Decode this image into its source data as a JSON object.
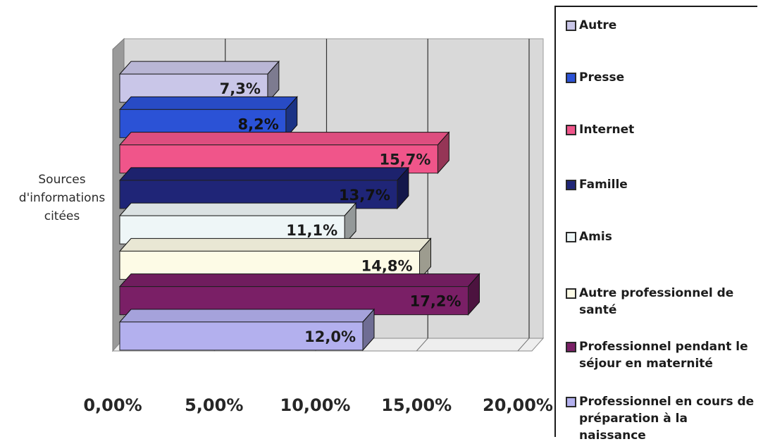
{
  "chart_data": {
    "type": "bar",
    "orientation": "horizontal",
    "style": "3d",
    "category_label": "Sources d'informations citées",
    "xlim": [
      0,
      20
    ],
    "x_ticks": [
      "0,00%",
      "5,00%",
      "10,00%",
      "15,00%",
      "20,00%"
    ],
    "grid": true,
    "legend_position": "right",
    "series": [
      {
        "name": "Autre",
        "value": 7.3,
        "label": "7,3%",
        "color": "#c9c6e8"
      },
      {
        "name": "Presse",
        "value": 8.2,
        "label": "8,2%",
        "color": "#2b52d6"
      },
      {
        "name": "Internet",
        "value": 15.7,
        "label": "15,7%",
        "color": "#f0558a"
      },
      {
        "name": "Famille",
        "value": 13.7,
        "label": "13,7%",
        "color": "#1f2577"
      },
      {
        "name": "Amis",
        "value": 11.1,
        "label": "11,1%",
        "color": "#eef6f7"
      },
      {
        "name": "Autre professionnel de santé",
        "value": 14.8,
        "label": "14,8%",
        "color": "#fdfbe6"
      },
      {
        "name": "Professionnel pendant le séjour en maternité",
        "value": 17.2,
        "label": "17,2%",
        "color": "#7a1f66"
      },
      {
        "name": "Professionnel en cours de préparation à la naissance",
        "value": 12.0,
        "label": "12,0%",
        "color": "#b3b0ee"
      }
    ]
  }
}
